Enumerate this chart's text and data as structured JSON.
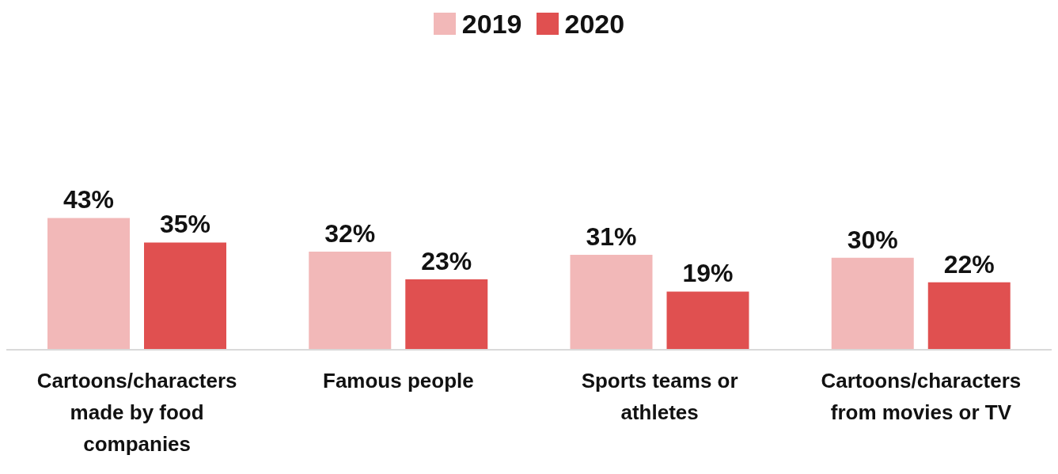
{
  "chart_data": {
    "type": "bar",
    "categories": [
      "Cartoons/characters made by food companies",
      "Famous people",
      "Sports teams or athletes",
      "Cartoons/characters from movies or TV"
    ],
    "series": [
      {
        "name": "2019",
        "color": "#f2b8b8",
        "values": [
          43,
          32,
          31,
          30
        ],
        "value_labels": [
          "43%",
          "32%",
          "31%",
          "30%"
        ]
      },
      {
        "name": "2020",
        "color": "#e05050",
        "values": [
          35,
          23,
          19,
          22
        ],
        "value_labels": [
          "35%",
          "23%",
          "19%",
          "22%"
        ]
      }
    ],
    "legend": "top",
    "grid": false
  }
}
